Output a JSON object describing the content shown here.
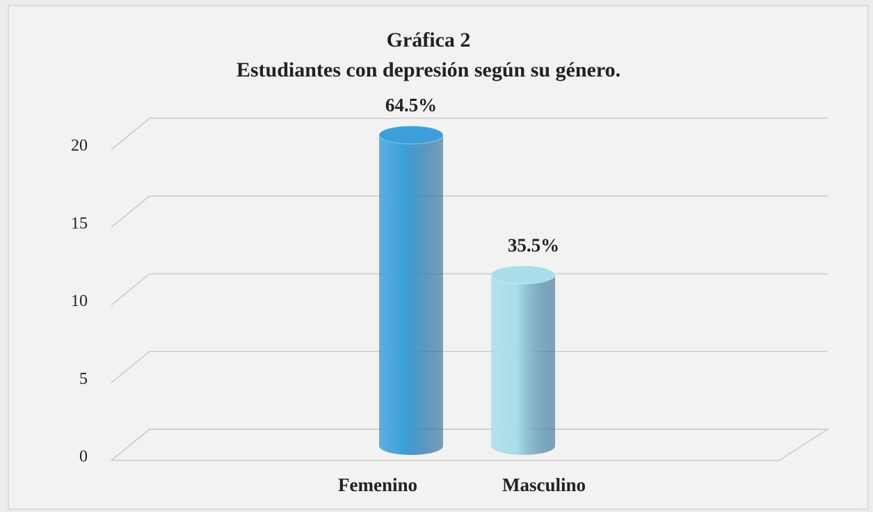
{
  "chart_data": {
    "type": "bar",
    "title": "Gráfica 2",
    "subtitle": "Estudiantes con depresión según su género.",
    "categories": [
      "Femenino",
      "Masculino"
    ],
    "values": [
      20,
      11
    ],
    "value_labels": [
      "64.5%",
      "35.5%"
    ],
    "colors": [
      "#3a9fdb",
      "#a9dde9"
    ],
    "ylim": [
      0,
      20
    ],
    "yticks": [
      0,
      5,
      10,
      15,
      20
    ],
    "grid": true
  }
}
